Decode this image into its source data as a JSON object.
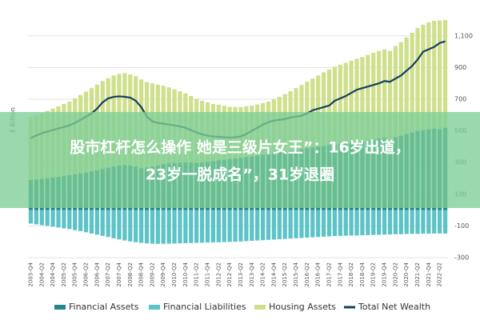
{
  "chart_data": {
    "type": "bar",
    "y_axis_label": "€ Billion",
    "legend": "bottom",
    "grid": true,
    "stacked": true,
    "ylim": [
      -300,
      1200
    ],
    "yticks": [
      -300,
      -100,
      100,
      300,
      500,
      700,
      900,
      {
        "value": 1100,
        "label": "1,100"
      }
    ],
    "categories": [
      "2003-Q4",
      null,
      "2004-Q2",
      null,
      "2004-Q4",
      null,
      "2005-Q2",
      null,
      "2005-Q4",
      null,
      "2006-Q2",
      null,
      "2006-Q4",
      null,
      "2007-Q2",
      null,
      "2007-Q4",
      null,
      "2008-Q2",
      null,
      "2008-Q4",
      null,
      "2009-Q2",
      null,
      "2009-Q4",
      null,
      "2010-Q2",
      null,
      "2010-Q4",
      null,
      "2011-Q2",
      null,
      "2011-Q4",
      null,
      "2012-Q2",
      null,
      "2012-Q4",
      null,
      "2013-Q2",
      null,
      "2013-Q4",
      null,
      "2014-Q2",
      null,
      "2014-Q4",
      null,
      "2015-Q2",
      null,
      "2015-Q4",
      null,
      "2016-Q2",
      null,
      "2016-Q4",
      null,
      "2017-Q2",
      null,
      "2017-Q4",
      null,
      "2018-Q2",
      null,
      "2018-Q4",
      null,
      "2019-Q2",
      null,
      "2019-Q4",
      null,
      "2020-Q2",
      null,
      "2020-Q4",
      null,
      "2021-Q2",
      null,
      "2021-Q4",
      null,
      "2022-Q2",
      null
    ],
    "series": [
      {
        "name": "Financial Assets",
        "color": "#23868a",
        "kind": "bar",
        "values": [
          190,
          193,
          197,
          201,
          205,
          210,
          215,
          220,
          226,
          232,
          238,
          245,
          252,
          260,
          268,
          275,
          280,
          285,
          282,
          275,
          265,
          268,
          275,
          282,
          290,
          295,
          298,
          300,
          302,
          300,
          298,
          300,
          305,
          310,
          315,
          318,
          322,
          326,
          330,
          335,
          340,
          345,
          350,
          355,
          360,
          365,
          370,
          375,
          380,
          385,
          390,
          395,
          400,
          405,
          410,
          415,
          418,
          420,
          425,
          430,
          435,
          440,
          445,
          450,
          455,
          440,
          460,
          470,
          480,
          490,
          500,
          505,
          510,
          515,
          512,
          520
        ]
      },
      {
        "name": "Financial Liabilities",
        "color": "#5cc3c7",
        "kind": "bar",
        "values": [
          -85,
          -90,
          -95,
          -100,
          -105,
          -110,
          -115,
          -120,
          -127,
          -133,
          -140,
          -148,
          -155,
          -163,
          -170,
          -178,
          -185,
          -192,
          -198,
          -203,
          -207,
          -210,
          -212,
          -213,
          -213,
          -212,
          -211,
          -210,
          -209,
          -208,
          -207,
          -206,
          -205,
          -204,
          -203,
          -202,
          -201,
          -200,
          -198,
          -196,
          -194,
          -192,
          -190,
          -188,
          -186,
          -184,
          -182,
          -180,
          -178,
          -176,
          -174,
          -172,
          -170,
          -168,
          -166,
          -164,
          -163,
          -162,
          -161,
          -160,
          -159,
          -158,
          -157,
          -156,
          -155,
          -154,
          -153,
          -152,
          -151,
          -150,
          -150,
          -149,
          -149,
          -148,
          -148,
          -148
        ]
      },
      {
        "name": "Housing Assets",
        "color": "#cfe08c",
        "kind": "bar",
        "stack_on": 0,
        "values": [
          400,
          405,
          415,
          425,
          435,
          445,
          455,
          465,
          480,
          495,
          510,
          525,
          540,
          555,
          565,
          575,
          580,
          580,
          575,
          570,
          560,
          540,
          525,
          510,
          495,
          480,
          465,
          450,
          435,
          420,
          405,
          390,
          375,
          360,
          350,
          340,
          330,
          325,
          320,
          320,
          320,
          322,
          325,
          330,
          340,
          350,
          362,
          375,
          390,
          405,
          420,
          435,
          450,
          465,
          478,
          490,
          500,
          510,
          518,
          525,
          532,
          540,
          548,
          555,
          560,
          565,
          575,
          590,
          610,
          630,
          650,
          665,
          675,
          680,
          685,
          680
        ]
      },
      {
        "name": "Total Net Wealth",
        "color": "#173f5f",
        "kind": "line",
        "values": [
          455,
          470,
          485,
          495,
          505,
          515,
          525,
          535,
          550,
          570,
          590,
          610,
          640,
          680,
          705,
          715,
          718,
          715,
          710,
          690,
          650,
          590,
          560,
          550,
          545,
          540,
          535,
          528,
          520,
          505,
          490,
          478,
          470,
          465,
          462,
          460,
          458,
          460,
          465,
          480,
          500,
          520,
          540,
          555,
          565,
          570,
          575,
          585,
          590,
          595,
          610,
          630,
          640,
          650,
          660,
          690,
          705,
          720,
          740,
          760,
          770,
          780,
          790,
          800,
          815,
          810,
          830,
          850,
          880,
          910,
          950,
          1000,
          1015,
          1030,
          1055,
          1065
        ]
      }
    ]
  },
  "banner": {
    "lines": [
      "股市杠杆怎么操作 她是三级片女王”：16岁出道，",
      "23岁一脱成名”，31岁退圈"
    ]
  }
}
